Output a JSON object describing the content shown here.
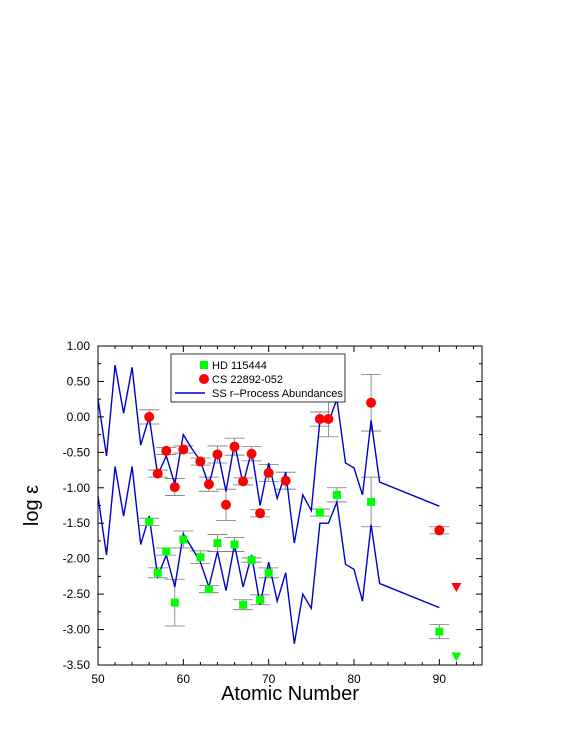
{
  "chart_data": {
    "type": "scatter",
    "xlabel": "Atomic Number",
    "ylabel": "log ε",
    "xlim": [
      50,
      95
    ],
    "ylim": [
      -3.5,
      1.0
    ],
    "x_ticks": [
      50,
      60,
      70,
      80,
      90
    ],
    "x_tick_labels": [
      "50",
      "60",
      "70",
      "80",
      "90"
    ],
    "y_ticks": [
      1.0,
      0.5,
      0.0,
      -0.5,
      -1.0,
      -1.5,
      -2.0,
      -2.5,
      -3.0,
      -3.5
    ],
    "y_tick_labels": [
      "1.00",
      "0.50",
      "0.00",
      "-0.50",
      "-1.00",
      "-1.50",
      "-2.00",
      "-2.50",
      "-3.00",
      "-3.50"
    ],
    "grid": false,
    "legend_position": "top-center",
    "series": [
      {
        "name": "HD 115444",
        "kind": "points",
        "marker": "square",
        "color": "#00ff00",
        "points": [
          {
            "x": 56,
            "y": -1.48,
            "err": 0.05
          },
          {
            "x": 57,
            "y": -2.2,
            "err": 0.07
          },
          {
            "x": 58,
            "y": -1.9,
            "err": 0.05
          },
          {
            "x": 59,
            "y": -2.62,
            "err": 0.33
          },
          {
            "x": 60,
            "y": -1.73,
            "err": 0.12
          },
          {
            "x": 62,
            "y": -1.98,
            "err": 0.09
          },
          {
            "x": 63,
            "y": -2.43,
            "err": 0.05
          },
          {
            "x": 64,
            "y": -1.78,
            "err": 0.12
          },
          {
            "x": 66,
            "y": -1.8,
            "err": 0.1
          },
          {
            "x": 67,
            "y": -2.65,
            "err": 0.07
          },
          {
            "x": 68,
            "y": -2.02,
            "err": 0.03
          },
          {
            "x": 69,
            "y": -2.58,
            "err": 0.07
          },
          {
            "x": 70,
            "y": -2.2,
            "err": 0.07
          },
          {
            "x": 76,
            "y": -1.35,
            "err": 0.05
          },
          {
            "x": 78,
            "y": -1.1,
            "err": 0.1
          },
          {
            "x": 82,
            "y": -1.2,
            "err": 0.35
          },
          {
            "x": 90,
            "y": -3.03,
            "err": 0.1
          }
        ],
        "upper_limits": [
          {
            "x": 92,
            "y": -3.38
          }
        ]
      },
      {
        "name": "CS 22892-052",
        "kind": "points",
        "marker": "circle",
        "color": "#ff0000",
        "points": [
          {
            "x": 56,
            "y": 0.0,
            "err": 0.1
          },
          {
            "x": 57,
            "y": -0.8,
            "err": 0.05
          },
          {
            "x": 58,
            "y": -0.48,
            "err": 0.05
          },
          {
            "x": 59,
            "y": -0.99,
            "err": 0.12
          },
          {
            "x": 60,
            "y": -0.46,
            "err": 0.05
          },
          {
            "x": 62,
            "y": -0.63,
            "err": 0.05
          },
          {
            "x": 63,
            "y": -0.95,
            "err": 0.1
          },
          {
            "x": 64,
            "y": -0.53,
            "err": 0.12
          },
          {
            "x": 65,
            "y": -1.24,
            "err": 0.22
          },
          {
            "x": 66,
            "y": -0.42,
            "err": 0.12
          },
          {
            "x": 67,
            "y": -0.91,
            "err": 0.05
          },
          {
            "x": 68,
            "y": -0.52,
            "err": 0.1
          },
          {
            "x": 69,
            "y": -1.36,
            "err": 0.05
          },
          {
            "x": 70,
            "y": -0.79,
            "err": 0.12
          },
          {
            "x": 72,
            "y": -0.9,
            "err": 0.12
          },
          {
            "x": 76,
            "y": -0.03,
            "err": 0.1
          },
          {
            "x": 77,
            "y": -0.03,
            "err": 0.25
          },
          {
            "x": 82,
            "y": 0.2,
            "err": 0.4
          },
          {
            "x": 90,
            "y": -1.6,
            "err": 0.05
          }
        ],
        "upper_limits": [
          {
            "x": 92,
            "y": -2.4
          }
        ]
      },
      {
        "name": "SS r–Process Abundances",
        "kind": "lines",
        "color": "#0000cc",
        "lines": [
          {
            "points": [
              [
                50,
                0.25
              ],
              [
                51,
                -0.55
              ],
              [
                52,
                0.73
              ],
              [
                53,
                0.05
              ],
              [
                54,
                0.7
              ],
              [
                55,
                -0.4
              ],
              [
                56,
                0.0
              ],
              [
                57,
                -0.82
              ],
              [
                58,
                -0.55
              ],
              [
                59,
                -0.95
              ],
              [
                60,
                -0.25
              ],
              [
                61,
                -0.45
              ],
              [
                62,
                -0.62
              ],
              [
                63,
                -0.97
              ],
              [
                64,
                -0.47
              ],
              [
                65,
                -1.05
              ],
              [
                66,
                -0.37
              ],
              [
                67,
                -0.95
              ],
              [
                68,
                -0.48
              ],
              [
                69,
                -1.25
              ],
              [
                70,
                -0.65
              ],
              [
                71,
                -1.15
              ],
              [
                72,
                -0.78
              ],
              [
                73,
                -1.78
              ],
              [
                74,
                -1.1
              ],
              [
                75,
                -1.32
              ],
              [
                76,
                -0.05
              ],
              [
                77,
                -0.08
              ],
              [
                78,
                0.25
              ],
              [
                79,
                -0.65
              ],
              [
                80,
                -0.72
              ],
              [
                81,
                -1.1
              ],
              [
                82,
                -0.05
              ],
              [
                83,
                -0.92
              ],
              [
                90,
                -1.26
              ]
            ]
          },
          {
            "points": [
              [
                50,
                -1.12
              ],
              [
                51,
                -1.95
              ],
              [
                52,
                -0.7
              ],
              [
                53,
                -1.4
              ],
              [
                54,
                -0.7
              ],
              [
                55,
                -1.8
              ],
              [
                56,
                -1.4
              ],
              [
                57,
                -2.25
              ],
              [
                58,
                -1.95
              ],
              [
                59,
                -2.4
              ],
              [
                60,
                -1.65
              ],
              [
                61,
                -1.85
              ],
              [
                62,
                -2.05
              ],
              [
                63,
                -2.4
              ],
              [
                64,
                -1.9
              ],
              [
                65,
                -2.45
              ],
              [
                66,
                -1.8
              ],
              [
                67,
                -2.4
              ],
              [
                68,
                -1.95
              ],
              [
                69,
                -2.65
              ],
              [
                70,
                -2.05
              ],
              [
                71,
                -2.6
              ],
              [
                72,
                -2.2
              ],
              [
                73,
                -3.2
              ],
              [
                74,
                -2.5
              ],
              [
                75,
                -2.7
              ],
              [
                76,
                -1.5
              ],
              [
                77,
                -1.5
              ],
              [
                78,
                -1.2
              ],
              [
                79,
                -2.08
              ],
              [
                80,
                -2.15
              ],
              [
                81,
                -2.6
              ],
              [
                82,
                -1.52
              ],
              [
                83,
                -2.35
              ],
              [
                90,
                -2.69
              ]
            ]
          }
        ]
      }
    ]
  }
}
